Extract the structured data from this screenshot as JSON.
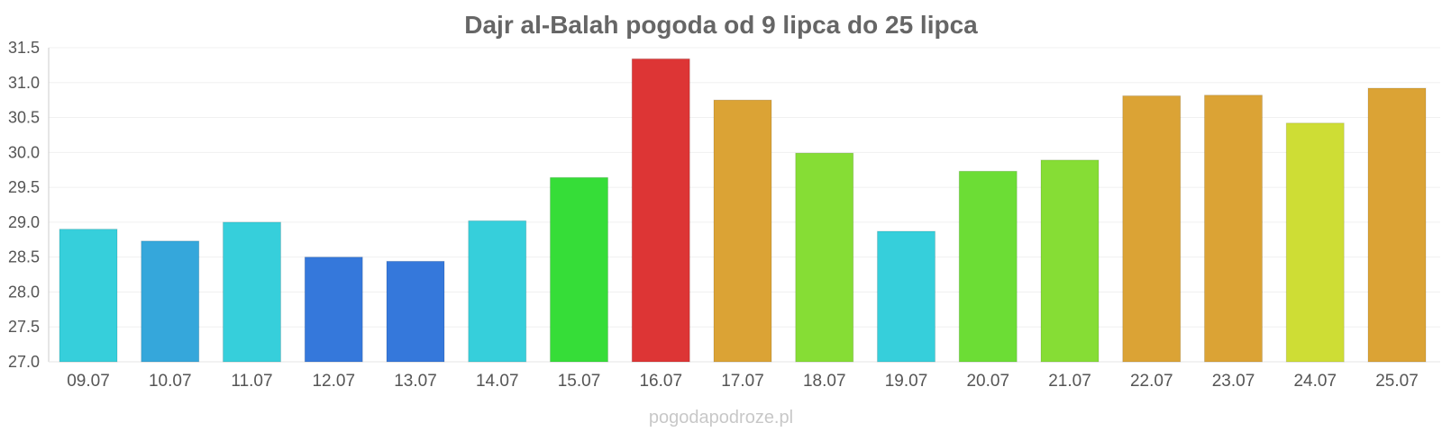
{
  "chart_data": {
    "type": "bar",
    "title": "Dajr al-Balah pogoda od 9 lipca do 25 lipca",
    "xlabel": "",
    "ylabel": "",
    "ylim": [
      27.0,
      31.5
    ],
    "yticks": [
      "27.0",
      "27.5",
      "28.0",
      "28.5",
      "29.0",
      "29.5",
      "30.0",
      "30.5",
      "31.0",
      "31.5"
    ],
    "grid": true,
    "categories": [
      "09.07",
      "10.07",
      "11.07",
      "12.07",
      "13.07",
      "14.07",
      "15.07",
      "16.07",
      "17.07",
      "18.07",
      "19.07",
      "20.07",
      "21.07",
      "22.07",
      "23.07",
      "24.07",
      "25.07"
    ],
    "values": [
      28.9,
      28.73,
      29.0,
      28.5,
      28.44,
      29.02,
      29.64,
      31.34,
      30.75,
      29.99,
      28.87,
      29.73,
      29.89,
      30.81,
      30.82,
      30.42,
      30.92
    ],
    "colors": [
      "#36cfdb",
      "#35a7db",
      "#36cfdb",
      "#3578db",
      "#3578db",
      "#36cfdb",
      "#36dd38",
      "#dd3535",
      "#dba335",
      "#86dd35",
      "#36cfdb",
      "#6cdd35",
      "#86dd35",
      "#dba335",
      "#dba335",
      "#cedd35",
      "#dba335"
    ]
  },
  "watermark": "pogodapodroze.pl"
}
